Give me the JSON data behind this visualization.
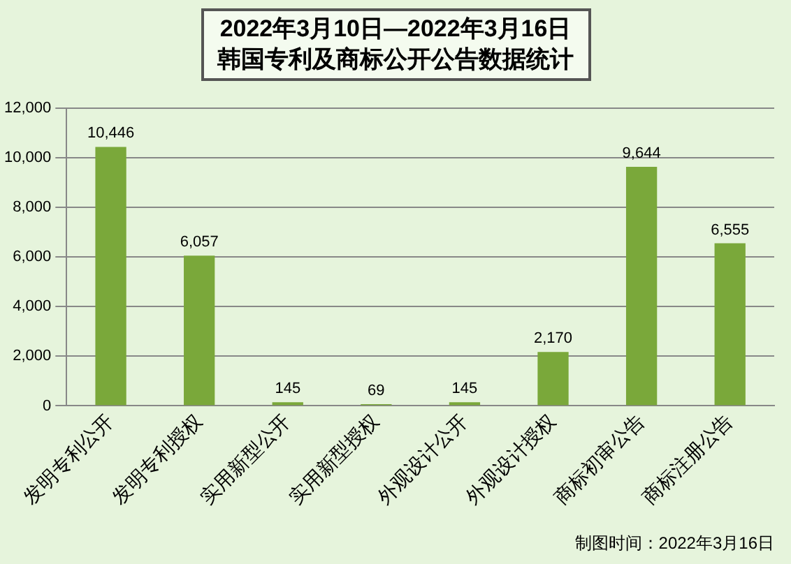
{
  "chart_data": {
    "type": "bar",
    "title": "2022年3月10日—2022年3月16日",
    "subtitle": "韩国专利及商标公开公告数据统计",
    "categories": [
      "发明专利公开",
      "发明专利授权",
      "实用新型公开",
      "实用新型授权",
      "外观设计公开",
      "外观设计授权",
      "商标初审公告",
      "商标注册公告"
    ],
    "values": [
      10446,
      6057,
      145,
      69,
      145,
      2170,
      9644,
      6555
    ],
    "value_labels": [
      "10,446",
      "6,057",
      "145",
      "69",
      "145",
      "2,170",
      "9,644",
      "6,555"
    ],
    "color": "#7aa83a",
    "ylim": [
      0,
      12000
    ],
    "yticks": [
      {
        "value": 0,
        "label": "0"
      },
      {
        "value": 2000,
        "label": "2,000"
      },
      {
        "value": 4000,
        "label": "4,000"
      },
      {
        "value": 6000,
        "label": "6,000"
      },
      {
        "value": 8000,
        "label": "8,000"
      },
      {
        "value": 10000,
        "label": "10,000"
      },
      {
        "value": 12000,
        "label": "12,000"
      }
    ],
    "grid": "y",
    "legend": false,
    "annotations": [
      "制图时间：2022年3月16日"
    ]
  }
}
